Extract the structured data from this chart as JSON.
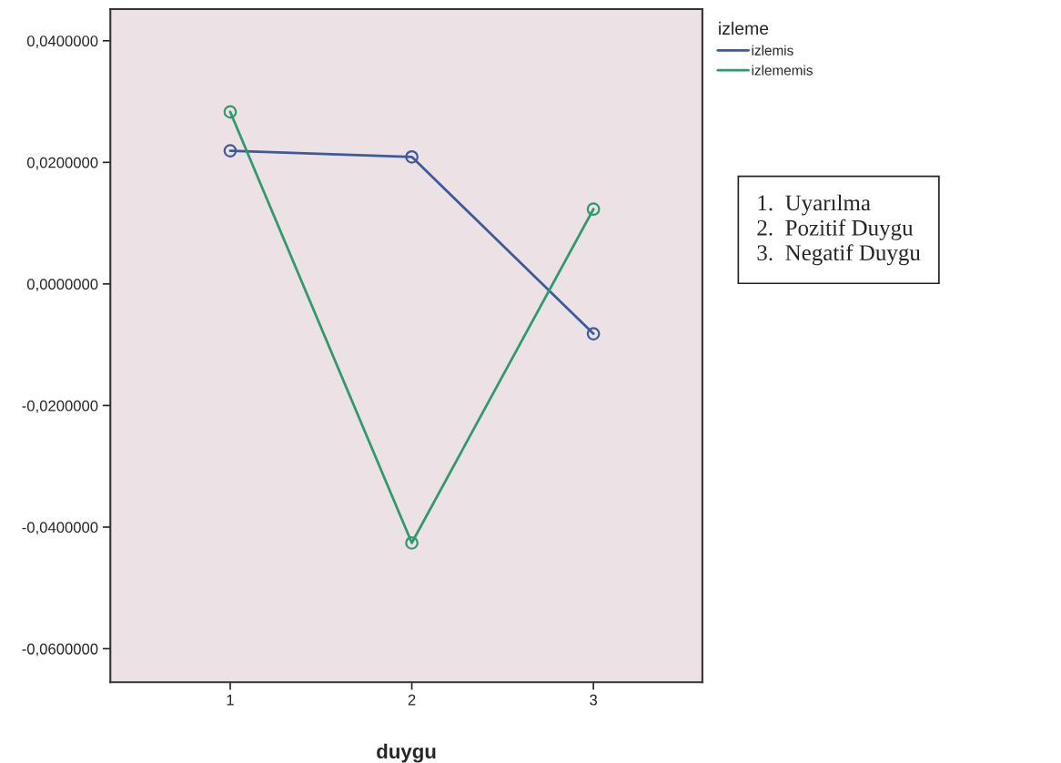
{
  "chart_data": {
    "type": "line",
    "xlabel": "duygu",
    "x": [
      1,
      2,
      3
    ],
    "xlim": [
      0.34,
      3.6
    ],
    "xticks": [
      1,
      2,
      3
    ],
    "ylim": [
      -0.0655,
      0.0452
    ],
    "yticks": [
      {
        "value": 0.04,
        "label": "0,0400000"
      },
      {
        "value": 0.02,
        "label": "0,0200000"
      },
      {
        "value": 0,
        "label": "0,0000000"
      },
      {
        "value": -0.02,
        "label": "-0,0200000"
      },
      {
        "value": -0.04,
        "label": "-0,0400000"
      },
      {
        "value": -0.06,
        "label": "-0,0600000"
      }
    ],
    "series": [
      {
        "name": "izlemis",
        "color": "#3e5a9a",
        "values": [
          0.0219,
          0.0209,
          -0.0082
        ]
      },
      {
        "name": "izlememis",
        "color": "#2e9a6e",
        "values": [
          0.0283,
          -0.0426,
          0.0123
        ]
      }
    ],
    "legend_title": "izleme",
    "legend": "top right",
    "marker": "circle",
    "line_style": "solid",
    "grid": false,
    "annotations": [
      "1.  Uyarılma\n2.  Pozitif Duygu\n3.  Negatif Duygu"
    ]
  }
}
